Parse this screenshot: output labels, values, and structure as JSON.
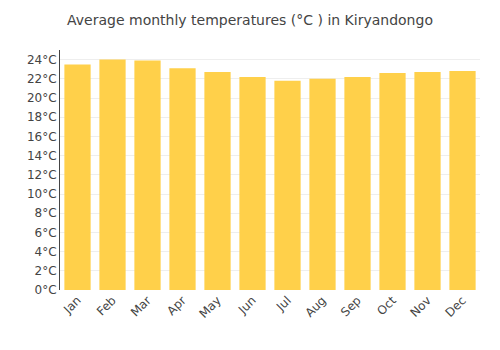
{
  "chart_data": {
    "type": "bar",
    "title": "Average monthly temperatures (°C ) in Kiryandongo",
    "categories": [
      "Jan",
      "Feb",
      "Mar",
      "Apr",
      "May",
      "Jun",
      "Jul",
      "Aug",
      "Sep",
      "Oct",
      "Nov",
      "Dec"
    ],
    "values": [
      23.5,
      24.0,
      23.9,
      23.1,
      22.7,
      22.2,
      21.8,
      22.0,
      22.2,
      22.6,
      22.7,
      22.8
    ],
    "color": "#FFD04A",
    "ylim": [
      0,
      25
    ],
    "yticks": [
      {
        "value": 0,
        "label": "0°C"
      },
      {
        "value": 2,
        "label": "2°C"
      },
      {
        "value": 4,
        "label": "4°C"
      },
      {
        "value": 6,
        "label": "6°C"
      },
      {
        "value": 8,
        "label": "8°C"
      },
      {
        "value": 10,
        "label": "10°C"
      },
      {
        "value": 12,
        "label": "12°C"
      },
      {
        "value": 14,
        "label": "14°C"
      },
      {
        "value": 16,
        "label": "16°C"
      },
      {
        "value": 18,
        "label": "18°C"
      },
      {
        "value": 20,
        "label": "20°C"
      },
      {
        "value": 22,
        "label": "22°C"
      },
      {
        "value": 24,
        "label": "24°C"
      }
    ],
    "grid": true
  }
}
